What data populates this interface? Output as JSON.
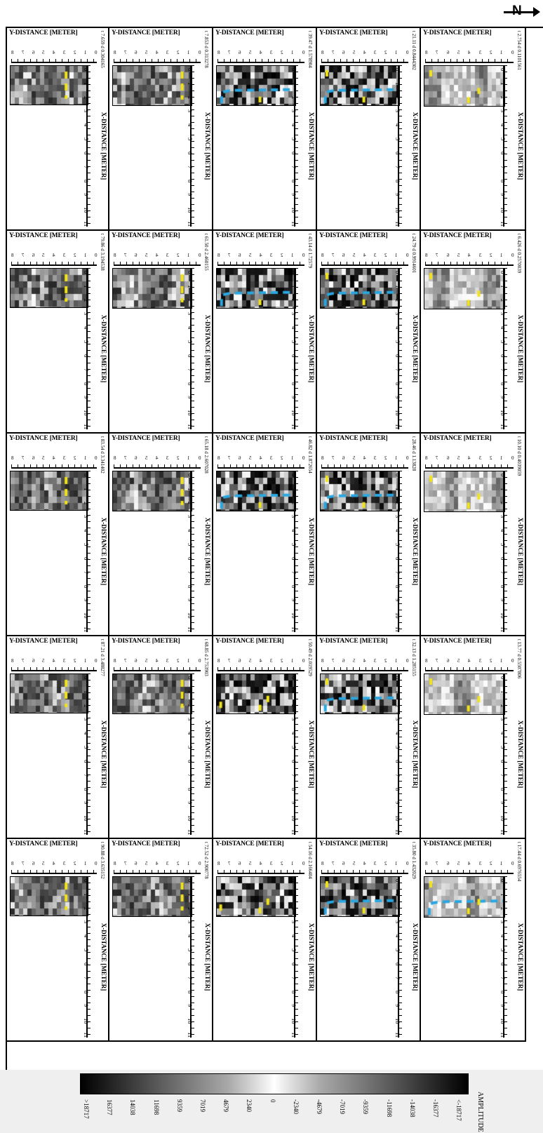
{
  "north_label": "N",
  "panel_title": "Y-DISTANCE [METER]",
  "x_axis_label": "X-DISTANCE [METER]",
  "y_ticks": [
    "0",
    "1",
    "2",
    "3",
    "4",
    "5",
    "6",
    "7",
    "8"
  ],
  "x_ticks": [
    "0",
    "1",
    "2",
    "3",
    "4",
    "5",
    "6",
    "7",
    "8",
    "9",
    "10",
    "11"
  ],
  "panels": [
    {
      "meta": "t 7.659 d 0.304165",
      "scheme": "mid"
    },
    {
      "meta": "t 7.853 d 0.313278",
      "scheme": "mid"
    },
    {
      "meta": "t 39.47 d 1.578904",
      "scheme": "dark"
    },
    {
      "meta": "t 21.11 d 0.8444302",
      "scheme": "dark"
    },
    {
      "meta": "t 2.754 d 0.1101561",
      "scheme": "light"
    },
    {
      "meta": "t 79.86 d 3.194538",
      "scheme": "mid"
    },
    {
      "meta": "t 61.50 d 2.460155",
      "scheme": "mid"
    },
    {
      "meta": "t 43.14 d 1.72579",
      "scheme": "dark"
    },
    {
      "meta": "t 24.79 d 0.9914601",
      "scheme": "dark"
    },
    {
      "meta": "t 6.426 d 0.2570039",
      "scheme": "light"
    },
    {
      "meta": "t 83.54 d 3.341402",
      "scheme": "mid"
    },
    {
      "meta": "t 65.18 d 2.607028",
      "scheme": "mid"
    },
    {
      "meta": "t 46.82 d 1.872654",
      "scheme": "dark"
    },
    {
      "meta": "t 28.46 d 1.13828",
      "scheme": "dark"
    },
    {
      "meta": "t 10.10 d 0.4039059",
      "scheme": "light"
    },
    {
      "meta": "t 87.21 d 3.488277",
      "scheme": "mid"
    },
    {
      "meta": "t 68.85 d 2.753903",
      "scheme": "mid"
    },
    {
      "meta": "t 50.49 d 2.019529",
      "scheme": "dark"
    },
    {
      "meta": "t 32.13 d 1.285155",
      "scheme": "dark"
    },
    {
      "meta": "t 13.77 d 0.5507806",
      "scheme": "light"
    },
    {
      "meta": "t 90.88 d 3.635152",
      "scheme": "mid"
    },
    {
      "meta": "t 72.52 d 2.900778",
      "scheme": "mid"
    },
    {
      "meta": "t 54.16 d 2.166404",
      "scheme": "dark"
    },
    {
      "meta": "t 35.80 d 1.432029",
      "scheme": "dark"
    },
    {
      "meta": "t 17.44 d 0.6976554",
      "scheme": "light"
    }
  ],
  "colorbar": {
    "title": "AMPLITUDE",
    "labels": [
      ">18717",
      "16377",
      "14038",
      "11698",
      "9359",
      "7019",
      "4679",
      "2340",
      "0",
      "-2340",
      "-4679",
      "-7019",
      "-9359",
      "-11698",
      "-14038",
      "-16377",
      "<-18717"
    ]
  },
  "colors": {
    "yellow_marker": "#f2e31b",
    "blue_marker": "#2aa6e0"
  }
}
